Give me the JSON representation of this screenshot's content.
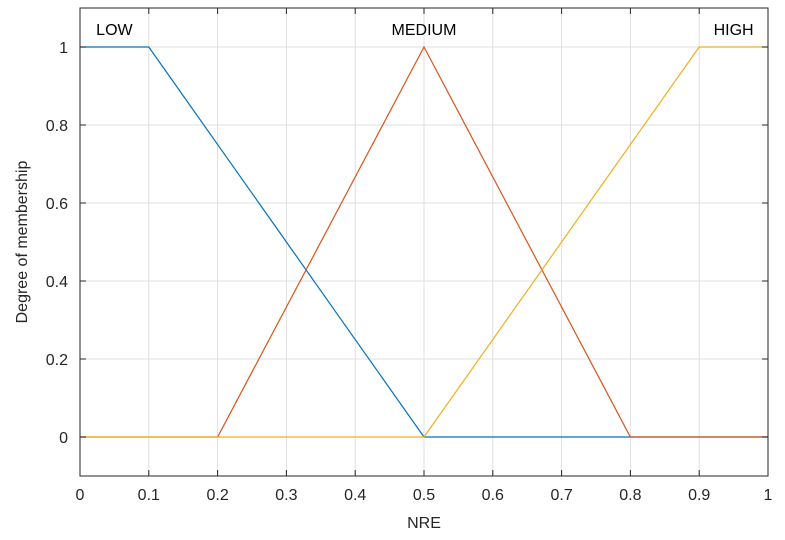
{
  "chart_data": {
    "type": "line",
    "title": "",
    "xlabel": "NRE",
    "ylabel": "Degree of membership",
    "xlim": [
      0,
      1
    ],
    "ylim": [
      -0.1,
      1.1
    ],
    "x_ticks": [
      0,
      0.1,
      0.2,
      0.3,
      0.4,
      0.5,
      0.6,
      0.7,
      0.8,
      0.9,
      1
    ],
    "x_tick_labels": [
      "0",
      "0.1",
      "0.2",
      "0.3",
      "0.4",
      "0.5",
      "0.6",
      "0.7",
      "0.8",
      "0.9",
      "1"
    ],
    "y_ticks": [
      0,
      0.2,
      0.4,
      0.6,
      0.8,
      1
    ],
    "y_tick_labels": [
      "0",
      "0.2",
      "0.4",
      "0.6",
      "0.8",
      "1"
    ],
    "grid": true,
    "series": [
      {
        "name": "LOW",
        "color": "#0072BD",
        "x": [
          0,
          0.1,
          0.5,
          1
        ],
        "y": [
          1,
          1,
          0,
          0
        ],
        "label_x": 0.05
      },
      {
        "name": "MEDIUM",
        "color": "#D95319",
        "x": [
          0,
          0.2,
          0.5,
          0.8,
          1
        ],
        "y": [
          0,
          0,
          1,
          0,
          0
        ],
        "label_x": 0.5
      },
      {
        "name": "HIGH",
        "color": "#EDB120",
        "x": [
          0,
          0.5,
          0.9,
          1
        ],
        "y": [
          0,
          0,
          1,
          1
        ],
        "label_x": 0.95
      }
    ]
  }
}
